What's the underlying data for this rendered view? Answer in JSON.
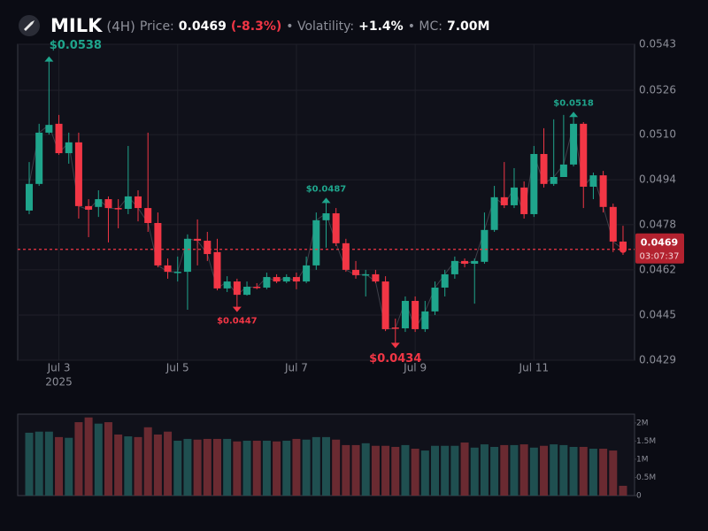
{
  "header": {
    "symbol": "MILK",
    "interval": "(4H)",
    "price_label": "Price:",
    "price": "0.0469",
    "change": "(-8.3%)",
    "volatility_label": "• Volatility:",
    "volatility": "+1.4%",
    "mc_label": "• MC:",
    "mc": "7.00M"
  },
  "chart_data": [
    {
      "type": "candlestick",
      "categories": [
        null,
        null,
        null,
        "Jul 3",
        null,
        null,
        null,
        null,
        null,
        null,
        null,
        null,
        null,
        null,
        null,
        "Jul 5",
        null,
        null,
        null,
        null,
        null,
        null,
        null,
        null,
        null,
        null,
        null,
        "Jul 7",
        null,
        null,
        null,
        null,
        null,
        null,
        null,
        null,
        null,
        null,
        null,
        "Jul 9",
        null,
        null,
        null,
        null,
        null,
        null,
        null,
        null,
        null,
        null,
        null,
        "Jul 11",
        null,
        null,
        null,
        null,
        null,
        null,
        null,
        null,
        null
      ],
      "year_label": "2025",
      "open": [
        0.0483,
        0.04926,
        0.05111,
        0.05143,
        0.05037,
        0.05076,
        0.04846,
        0.04843,
        0.04871,
        0.04839,
        0.04836,
        0.04881,
        0.04839,
        0.04785,
        0.04632,
        0.04609,
        0.04609,
        0.04728,
        0.04721,
        0.0468,
        0.04549,
        0.04574,
        0.04526,
        0.04555,
        0.04552,
        0.0459,
        0.04574,
        0.0459,
        0.04574,
        0.04632,
        0.04795,
        0.0482,
        0.04712,
        0.04616,
        0.046,
        0.046,
        0.04574,
        0.04408,
        0.04405,
        0.04504,
        0.04402,
        0.04466,
        0.04552,
        0.046,
        0.04648,
        0.04638,
        0.04645,
        0.0476,
        0.04878,
        0.04849,
        0.04913,
        0.04817,
        0.05034,
        0.04926,
        0.04951,
        0.04996,
        0.05143,
        0.04916,
        0.04957,
        0.04843,
        0.04718
      ],
      "high": [
        0.05005,
        0.05143,
        0.0538,
        0.05175,
        0.05111,
        0.05111,
        0.04871,
        0.04903,
        0.04881,
        0.04871,
        0.05063,
        0.04903,
        0.05111,
        0.04823,
        0.04657,
        0.04664,
        0.04744,
        0.04798,
        0.04753,
        0.04728,
        0.04593,
        0.04584,
        0.04574,
        0.04568,
        0.04606,
        0.046,
        0.046,
        0.04606,
        0.04664,
        0.04823,
        0.0487,
        0.04839,
        0.04728,
        0.04648,
        0.04616,
        0.04616,
        0.04593,
        0.0444,
        0.0452,
        0.0452,
        0.04504,
        0.04574,
        0.04616,
        0.04664,
        0.04657,
        0.04657,
        0.04823,
        0.04919,
        0.05005,
        0.04983,
        0.04935,
        0.05063,
        0.05127,
        0.05159,
        0.05175,
        0.0518,
        0.05149,
        0.04967,
        0.04973,
        0.04855,
        0.04775
      ],
      "low": [
        0.04817,
        0.04919,
        0.05104,
        0.05031,
        0.04999,
        0.04801,
        0.04734,
        0.04807,
        0.04715,
        0.04766,
        0.04817,
        0.04791,
        0.04753,
        0.04625,
        0.04584,
        0.04574,
        0.04472,
        0.04632,
        0.04648,
        0.04542,
        0.04536,
        0.0447,
        0.04523,
        0.04546,
        0.04546,
        0.04568,
        0.04568,
        0.04546,
        0.04568,
        0.04616,
        0.04696,
        0.04702,
        0.04609,
        0.04584,
        0.0452,
        0.04568,
        0.04395,
        0.0434,
        0.04392,
        0.04392,
        0.04392,
        0.04453,
        0.0452,
        0.04584,
        0.04625,
        0.04494,
        0.04638,
        0.04753,
        0.04839,
        0.04839,
        0.04801,
        0.04807,
        0.04913,
        0.04919,
        0.04951,
        0.04989,
        0.04839,
        0.04871,
        0.04823,
        0.0468,
        0.0467
      ],
      "close": [
        0.04926,
        0.05111,
        0.05139,
        0.05037,
        0.05076,
        0.04846,
        0.04833,
        0.04871,
        0.04839,
        0.04836,
        0.04881,
        0.04839,
        0.04785,
        0.04632,
        0.04609,
        0.04609,
        0.04728,
        0.04721,
        0.04673,
        0.04549,
        0.04574,
        0.04526,
        0.04555,
        0.04552,
        0.0459,
        0.04574,
        0.0459,
        0.04574,
        0.04632,
        0.04795,
        0.0482,
        0.04712,
        0.04616,
        0.04597,
        0.046,
        0.04574,
        0.04402,
        0.04405,
        0.04504,
        0.04402,
        0.04466,
        0.04552,
        0.046,
        0.04648,
        0.04638,
        0.04648,
        0.0476,
        0.04878,
        0.04849,
        0.04913,
        0.04817,
        0.05034,
        0.04926,
        0.04951,
        0.04996,
        0.05143,
        0.04916,
        0.04957,
        0.04843,
        0.04718,
        0.0469
      ],
      "ylim": [
        0.0429,
        0.0543
      ],
      "yticks": [
        0.0429,
        {
          "value": 0.04453,
          "label": "0.0445"
        },
        {
          "value": 0.04616,
          "label": "0.0462"
        },
        {
          "value": 0.04779,
          "label": "0.0478"
        },
        {
          "value": 0.04941,
          "label": "0.0494"
        },
        {
          "value": 0.05104,
          "label": "0.0510"
        },
        {
          "value": 0.05264,
          "label": "0.0526"
        },
        0.0543
      ],
      "grid": true,
      "colors": {
        "up": "#1fa58c",
        "down": "#f23645"
      },
      "last_price": 0.0469,
      "countdown": "03:07:37",
      "annotations": [
        {
          "text": "$0.0538",
          "value": 0.0538
        },
        {
          "text": "$0.0447",
          "value": 0.0447
        },
        {
          "text": "$0.0487",
          "value": 0.0487
        },
        {
          "text": "$0.0434",
          "value": 0.0434
        },
        {
          "text": "$0.0518",
          "value": 0.0518
        }
      ]
    },
    {
      "type": "volume",
      "values": [
        1730000,
        1760000,
        1760000,
        1610000,
        1590000,
        2020000,
        2150000,
        1980000,
        2020000,
        1680000,
        1630000,
        1610000,
        1880000,
        1680000,
        1760000,
        1510000,
        1560000,
        1540000,
        1560000,
        1560000,
        1560000,
        1490000,
        1510000,
        1510000,
        1510000,
        1490000,
        1510000,
        1560000,
        1540000,
        1610000,
        1610000,
        1540000,
        1390000,
        1390000,
        1440000,
        1370000,
        1370000,
        1340000,
        1390000,
        1290000,
        1240000,
        1370000,
        1370000,
        1370000,
        1460000,
        1320000,
        1410000,
        1340000,
        1390000,
        1390000,
        1410000,
        1320000,
        1370000,
        1410000,
        1390000,
        1340000,
        1340000,
        1290000,
        1290000,
        1240000,
        270000
      ],
      "ylim": [
        0,
        2240000
      ],
      "yticks": [
        0,
        {
          "value": 500000,
          "label": "0.5M"
        },
        {
          "value": 1000000,
          "label": "1M"
        },
        {
          "value": 1500000,
          "label": "1.5M"
        },
        {
          "value": 2000000,
          "label": "2M"
        }
      ],
      "colors": {
        "up": "#1f4f50",
        "down": "#6a2a31"
      }
    }
  ]
}
